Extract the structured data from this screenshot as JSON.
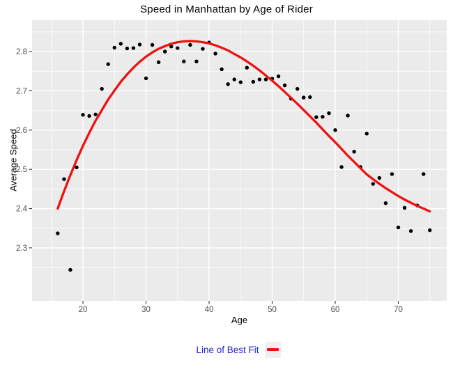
{
  "chart_data": {
    "type": "scatter",
    "title": "Speed in Manhattan by Age of Rider",
    "xlabel": "Age",
    "ylabel": "Average Speed",
    "panel_bg": "#EBEBEB",
    "grid_color": "#FFFFFF",
    "point_color": "#000000",
    "tick_color": "#333333",
    "tick_label_color": "#4D4D4D",
    "xlim": [
      11.93,
      77.68
    ],
    "ylim": [
      2.165,
      2.88
    ],
    "x_ticks": [
      "20",
      "30",
      "40",
      "50",
      "60",
      "70"
    ],
    "x_tick_values": [
      20,
      30,
      40,
      50,
      60,
      70
    ],
    "x_minor_values": [
      15,
      25,
      35,
      45,
      55,
      65,
      75
    ],
    "y_ticks": [
      "2.8",
      "2.7",
      "2.6",
      "2.5",
      "2.4",
      "2.3"
    ],
    "y_tick_values": [
      2.8,
      2.7,
      2.6,
      2.5,
      2.4,
      2.3
    ],
    "y_minor_values": [
      2.85,
      2.75,
      2.65,
      2.55,
      2.45,
      2.35,
      2.25
    ],
    "grid": true,
    "legend_position": "bottom",
    "points": {
      "x": [
        16,
        17,
        18,
        19,
        20,
        21,
        22,
        23,
        24,
        25,
        26,
        27,
        28,
        29,
        30,
        31,
        32,
        33,
        34,
        35,
        36,
        37,
        38,
        39,
        40,
        41,
        42,
        43,
        44,
        45,
        46,
        47,
        48,
        49,
        50,
        51,
        52,
        53,
        54,
        55,
        56,
        57,
        58,
        59,
        60,
        61,
        62,
        63,
        64,
        65,
        66,
        67,
        68,
        69,
        70,
        71,
        72,
        73,
        74,
        75
      ],
      "y": [
        2.337,
        2.475,
        2.244,
        2.505,
        2.639,
        2.636,
        2.64,
        2.705,
        2.768,
        2.81,
        2.82,
        2.808,
        2.809,
        2.818,
        2.732,
        2.817,
        2.773,
        2.8,
        2.813,
        2.809,
        2.775,
        2.817,
        2.775,
        2.807,
        2.823,
        2.795,
        2.755,
        2.717,
        2.729,
        2.722,
        2.759,
        2.723,
        2.729,
        2.729,
        2.731,
        2.737,
        2.714,
        2.68,
        2.705,
        2.683,
        2.684,
        2.633,
        2.634,
        2.643,
        2.6,
        2.506,
        2.637,
        2.545,
        2.506,
        2.591,
        2.463,
        2.478,
        2.414,
        2.488,
        2.352,
        2.402,
        2.343,
        2.408,
        2.488,
        2.345
      ]
    },
    "fit_line": {
      "name": "Line of Best Fit",
      "color": "#EE1111",
      "x": [
        16,
        17,
        18,
        19,
        20,
        21,
        22,
        23,
        24,
        25,
        26,
        27,
        28,
        29,
        30,
        31,
        32,
        33,
        34,
        35,
        36,
        37,
        38,
        39,
        40,
        41,
        42,
        43,
        44,
        45,
        46,
        47,
        48,
        49,
        50,
        51,
        52,
        53,
        54,
        55,
        56,
        57,
        58,
        59,
        60,
        61,
        62,
        63,
        64,
        65,
        66,
        67,
        68,
        69,
        70,
        71,
        72,
        73,
        74,
        75
      ],
      "y": [
        2.4,
        2.444,
        2.485,
        2.524,
        2.56,
        2.593,
        2.624,
        2.651,
        2.678,
        2.701,
        2.723,
        2.742,
        2.759,
        2.774,
        2.787,
        2.798,
        2.807,
        2.814,
        2.82,
        2.824,
        2.826,
        2.827,
        2.826,
        2.824,
        2.821,
        2.816,
        2.81,
        2.803,
        2.794,
        2.785,
        2.775,
        2.764,
        2.752,
        2.739,
        2.726,
        2.712,
        2.697,
        2.682,
        2.667,
        2.651,
        2.635,
        2.619,
        2.602,
        2.585,
        2.569,
        2.552,
        2.535,
        2.519,
        2.503,
        2.487,
        2.475,
        2.463,
        2.452,
        2.442,
        2.432,
        2.423,
        2.415,
        2.407,
        2.4,
        2.393
      ]
    }
  },
  "legend": {
    "title": "Line of Best Fit",
    "title_color": "#2424CC",
    "swatch_color": "#EE1111",
    "key_bg": "#F0F0F0"
  }
}
